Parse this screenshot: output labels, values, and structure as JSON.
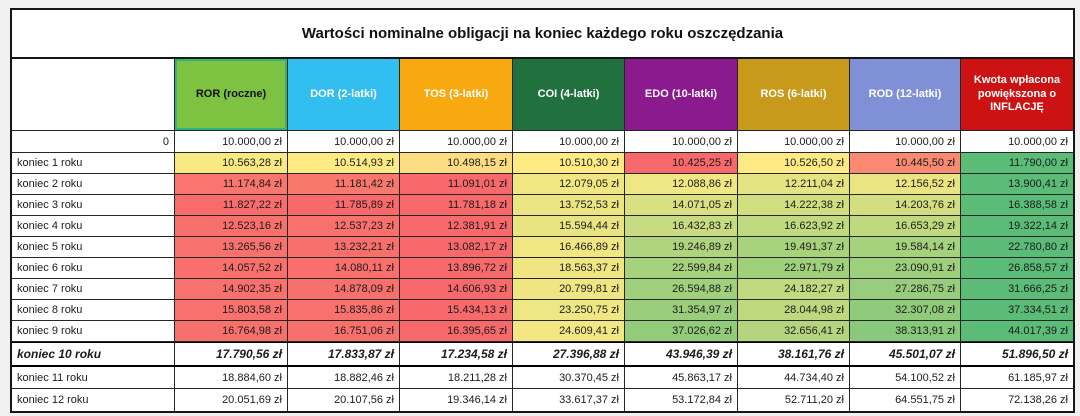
{
  "title": "Wartości nominalne obligacji na koniec każdego roku oszczędzania",
  "value_suffix": " zł",
  "columns": [
    {
      "label": "ROR (roczne)",
      "bg": "#7EC241",
      "fg": "#111111",
      "border": "#2FB57C"
    },
    {
      "label": "DOR (2-latki)",
      "bg": "#33BEF0",
      "fg": "#FFFFFF"
    },
    {
      "label": "TOS (3-latki)",
      "bg": "#F8A90F",
      "fg": "#FFFFFF"
    },
    {
      "label": "COI (4-latki)",
      "bg": "#20713D",
      "fg": "#FFFFFF"
    },
    {
      "label": "EDO (10-latki)",
      "bg": "#8B1A8F",
      "fg": "#FFFFFF"
    },
    {
      "label": "ROS (6-latki)",
      "bg": "#C79A1C",
      "fg": "#FFFFFF"
    },
    {
      "label": "ROD (12-latki)",
      "bg": "#7F90D6",
      "fg": "#FFFFFF"
    },
    {
      "label": "Kwota wpłacona powiększona o INFLACJĘ",
      "bg": "#CC1212",
      "fg": "#FFFFFF"
    }
  ],
  "color_scale": {
    "low": "#F8696B",
    "mid": "#FFEB84",
    "high": "#5BBC77",
    "mid_percentile": 0.4
  },
  "rows": [
    {
      "label": "0",
      "label_align": "right",
      "scale": false,
      "values": [
        10000.0,
        10000.0,
        10000.0,
        10000.0,
        10000.0,
        10000.0,
        10000.0,
        10000.0
      ]
    },
    {
      "label": "koniec 1 roku",
      "scale": true,
      "values": [
        10563.28,
        10514.93,
        10498.15,
        10510.3,
        10425.25,
        10526.5,
        10445.5,
        11790.0
      ]
    },
    {
      "label": "koniec 2 roku",
      "scale": true,
      "values": [
        11174.84,
        11181.42,
        11091.01,
        12079.05,
        12088.86,
        12211.04,
        12156.52,
        13900.41
      ]
    },
    {
      "label": "koniec 3 roku",
      "scale": true,
      "values": [
        11827.22,
        11785.89,
        11781.18,
        13752.53,
        14071.05,
        14222.38,
        14203.76,
        16388.58
      ]
    },
    {
      "label": "koniec 4 roku",
      "scale": true,
      "values": [
        12523.16,
        12537.23,
        12381.91,
        15594.44,
        16432.83,
        16623.92,
        16653.29,
        19322.14
      ]
    },
    {
      "label": "koniec 5 roku",
      "scale": true,
      "values": [
        13265.56,
        13232.21,
        13082.17,
        16466.89,
        19246.89,
        19491.37,
        19584.14,
        22780.8
      ]
    },
    {
      "label": "koniec 6 roku",
      "scale": true,
      "values": [
        14057.52,
        14080.11,
        13896.72,
        18563.37,
        22599.84,
        22971.79,
        23090.91,
        26858.57
      ]
    },
    {
      "label": "koniec 7 roku",
      "scale": true,
      "values": [
        14902.35,
        14878.09,
        14606.93,
        20799.81,
        26594.88,
        24182.27,
        27286.75,
        31666.25
      ]
    },
    {
      "label": "koniec 8 roku",
      "scale": true,
      "values": [
        15803.58,
        15835.86,
        15434.13,
        23250.75,
        31354.97,
        28044.98,
        32307.08,
        37334.51
      ]
    },
    {
      "label": "koniec 9 roku",
      "scale": true,
      "values": [
        16764.98,
        16751.06,
        16395.65,
        24609.41,
        37026.62,
        32656.41,
        38313.91,
        44017.39
      ]
    },
    {
      "label": "koniec 10 roku",
      "emphasis": true,
      "scale": false,
      "values": [
        17790.56,
        17833.87,
        17234.58,
        27396.88,
        43946.39,
        38161.76,
        45501.07,
        51896.5
      ]
    },
    {
      "label": "koniec 11 roku",
      "scale": false,
      "values": [
        18884.6,
        18882.46,
        18211.28,
        30370.45,
        45863.17,
        44734.4,
        54100.52,
        61185.97
      ]
    },
    {
      "label": "koniec 12 roku",
      "scale": false,
      "values": [
        20051.69,
        20107.56,
        19346.14,
        33617.37,
        53172.84,
        52711.2,
        64551.75,
        72138.26
      ]
    }
  ]
}
